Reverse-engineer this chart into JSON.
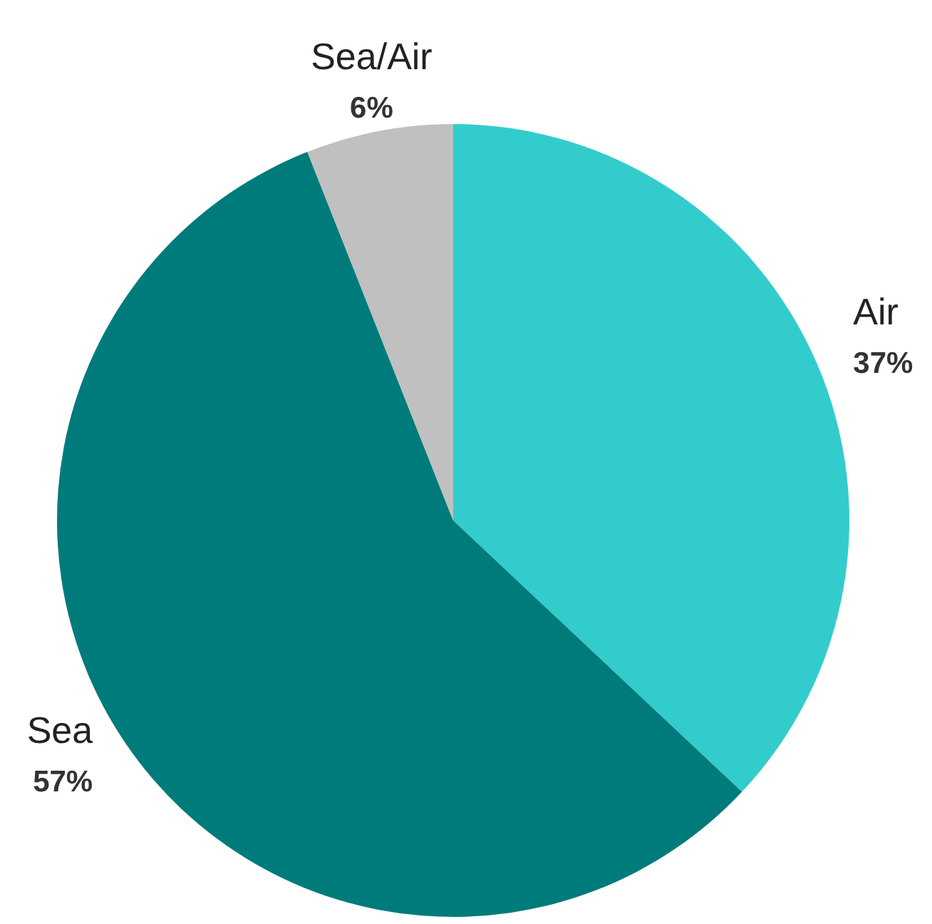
{
  "chart_data": {
    "type": "pie",
    "categories": [
      "Air",
      "Sea",
      "Sea/Air"
    ],
    "values": [
      37,
      57,
      6
    ],
    "colors": [
      "#33cccc",
      "#007b7b",
      "#c0c0c0"
    ],
    "value_labels": [
      "37%",
      "57%",
      "6%"
    ]
  }
}
